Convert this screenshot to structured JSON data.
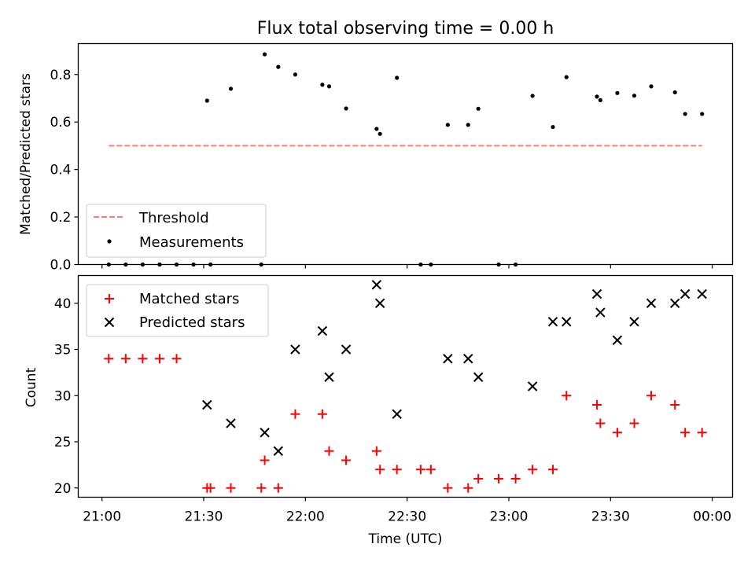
{
  "figure": {
    "title": "Flux total observing time = 0.00 h",
    "xlabel": "Time (UTC)",
    "x_ticks": [
      "21:00",
      "21:30",
      "22:00",
      "22:30",
      "23:00",
      "23:30",
      "00:00"
    ]
  },
  "colors": {
    "threshold": "#ff7b7b",
    "measurements": "#000000",
    "matched": "#ff0000",
    "predicted": "#000000",
    "axes": "#000000"
  },
  "chart_data": [
    {
      "type": "scatter",
      "panel": "top",
      "title": "Flux total observing time = 0.00 h",
      "xlabel": "",
      "ylabel": "Matched/Predicted stars",
      "x_unit": "minutes after 21:00 UTC",
      "xlim": [
        "20:53",
        "00:06"
      ],
      "ylim": [
        0,
        0.93
      ],
      "y_ticks": [
        "0.0",
        "0.2",
        "0.4",
        "0.6",
        "0.8"
      ],
      "y_tick_values": [
        0,
        0.2,
        0.4,
        0.6,
        0.8
      ],
      "legend_position": "lower-left",
      "series": [
        {
          "name": "Threshold",
          "style": "dashed-line",
          "x": [
            "21:02",
            "23:57"
          ],
          "y": [
            0.5,
            0.5
          ]
        },
        {
          "name": "Measurements",
          "style": "dot",
          "x": [
            "21:02",
            "21:07",
            "21:12",
            "21:17",
            "21:22",
            "21:27",
            "21:31",
            "21:32",
            "21:38",
            "21:47",
            "21:48",
            "21:52",
            "21:57",
            "22:05",
            "22:07",
            "22:12",
            "22:21",
            "22:22",
            "22:27",
            "22:34",
            "22:37",
            "22:42",
            "22:48",
            "22:51",
            "22:57",
            "23:02",
            "23:07",
            "23:13",
            "23:17",
            "23:26",
            "23:27",
            "23:32",
            "23:37",
            "23:42",
            "23:49",
            "23:52",
            "23:57"
          ],
          "y": [
            0.0,
            0.0,
            0.0,
            0.0,
            0.0,
            0.0,
            0.69,
            0.0,
            0.74,
            0.0,
            0.885,
            0.832,
            0.8,
            0.757,
            0.75,
            0.657,
            0.571,
            0.55,
            0.786,
            0.0,
            0.0,
            0.588,
            0.588,
            0.656,
            0.0,
            0.0,
            0.71,
            0.579,
            0.789,
            0.707,
            0.692,
            0.722,
            0.711,
            0.75,
            0.725,
            0.634,
            0.634
          ]
        }
      ]
    },
    {
      "type": "scatter",
      "panel": "bottom",
      "xlabel": "Time (UTC)",
      "ylabel": "Count",
      "xlim": [
        "20:53",
        "00:06"
      ],
      "ylim": [
        19,
        43
      ],
      "y_ticks": [
        "20",
        "25",
        "30",
        "35",
        "40"
      ],
      "y_tick_values": [
        20,
        25,
        30,
        35,
        40
      ],
      "x_ticks": [
        "21:00",
        "21:30",
        "22:00",
        "22:30",
        "23:00",
        "23:30",
        "00:00"
      ],
      "legend_position": "top-left",
      "series": [
        {
          "name": "Matched stars",
          "style": "plus",
          "x": [
            "21:02",
            "21:07",
            "21:12",
            "21:17",
            "21:22",
            "21:31",
            "21:32",
            "21:38",
            "21:47",
            "21:48",
            "21:52",
            "21:57",
            "22:05",
            "22:07",
            "22:12",
            "22:21",
            "22:22",
            "22:27",
            "22:34",
            "22:37",
            "22:42",
            "22:48",
            "22:51",
            "22:57",
            "23:02",
            "23:07",
            "23:13",
            "23:17",
            "23:26",
            "23:27",
            "23:32",
            "23:37",
            "23:42",
            "23:49",
            "23:52",
            "23:57"
          ],
          "y": [
            34,
            34,
            34,
            34,
            34,
            20,
            20,
            20,
            20,
            23,
            20,
            28,
            28,
            24,
            23,
            24,
            22,
            22,
            22,
            22,
            20,
            20,
            21,
            21,
            21,
            22,
            22,
            30,
            29,
            27,
            26,
            27,
            30,
            29,
            26,
            26
          ]
        },
        {
          "name": "Predicted stars",
          "style": "x",
          "x": [
            "21:31",
            "21:38",
            "21:48",
            "21:52",
            "21:57",
            "22:05",
            "22:07",
            "22:12",
            "22:21",
            "22:22",
            "22:27",
            "22:42",
            "22:48",
            "22:51",
            "23:07",
            "23:13",
            "23:17",
            "23:26",
            "23:27",
            "23:32",
            "23:37",
            "23:42",
            "23:49",
            "23:52",
            "23:57"
          ],
          "y": [
            29,
            27,
            26,
            24,
            35,
            37,
            32,
            35,
            42,
            40,
            28,
            34,
            34,
            32,
            31,
            38,
            38,
            41,
            39,
            36,
            38,
            40,
            40,
            41,
            41
          ]
        }
      ]
    }
  ]
}
